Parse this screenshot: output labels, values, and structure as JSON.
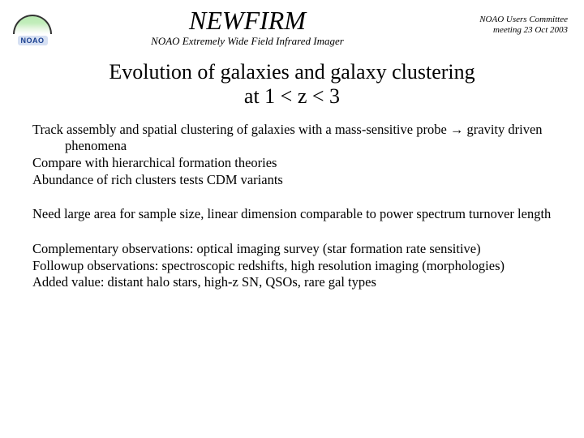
{
  "header": {
    "logo_label": "NOAO",
    "title": "NEWFIRM",
    "subtitle": "NOAO Extremely Wide Field Infrared Imager",
    "meeting_line1": "NOAO Users Committee",
    "meeting_line2": "meeting 23 Oct 2003"
  },
  "slide_title_line1": "Evolution of galaxies and galaxy clustering",
  "slide_title_line2": "at 1 < z < 3",
  "block1": {
    "l1a": "Track assembly and spatial clustering of galaxies with a mass-",
    "l1b": "sensitive probe",
    "l1c": " gravity driven phenomena",
    "l2": "Compare with hierarchical formation theories",
    "l3": "Abundance of rich clusters tests CDM variants"
  },
  "block2": {
    "l1": "Need large area for sample size, linear dimension comparable to power spectrum turnover length"
  },
  "block3": {
    "l1": "Complementary observations: optical imaging survey (star formation rate sensitive)",
    "l2": "Followup observations: spectroscopic redshifts, high resolution imaging (morphologies)",
    "l3": "Added value: distant halo stars, high-z SN, QSOs, rare gal types"
  },
  "style": {
    "background_color": "#ffffff",
    "text_color": "#000000",
    "font_family": "Times New Roman",
    "title_fontsize": 32,
    "subtitle_fontsize": 13,
    "meeting_fontsize": 11,
    "slide_title_fontsize": 26,
    "body_fontsize": 16.5,
    "logo_bg": "#d6e0f3",
    "logo_text_color": "#1a3f8f"
  }
}
